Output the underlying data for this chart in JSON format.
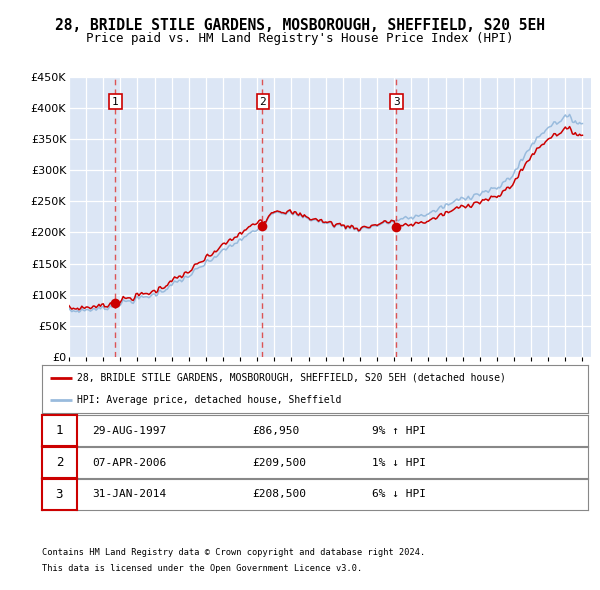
{
  "title_line1": "28, BRIDLE STILE GARDENS, MOSBOROUGH, SHEFFIELD, S20 5EH",
  "title_line2": "Price paid vs. HM Land Registry's House Price Index (HPI)",
  "title_fontsize": 10.5,
  "subtitle_fontsize": 9,
  "bg_color": "#dce6f5",
  "ylim": [
    0,
    450000
  ],
  "yticks": [
    0,
    50000,
    100000,
    150000,
    200000,
    250000,
    300000,
    350000,
    400000,
    450000
  ],
  "xmin": 1995.0,
  "xmax": 2025.5,
  "xticks": [
    1995,
    1996,
    1997,
    1998,
    1999,
    2000,
    2001,
    2002,
    2003,
    2004,
    2005,
    2006,
    2007,
    2008,
    2009,
    2010,
    2011,
    2012,
    2013,
    2014,
    2015,
    2016,
    2017,
    2018,
    2019,
    2020,
    2021,
    2022,
    2023,
    2024,
    2025
  ],
  "sale_color": "#cc0000",
  "hpi_color": "#99bbdd",
  "vline_color": "#dd4444",
  "sale_dot_color": "#cc0000",
  "sale_marker_size": 7,
  "grid_color": "#ffffff",
  "sales": [
    {
      "label": "1",
      "date": 1997.66,
      "price": 86950,
      "x_vline": 1997.66
    },
    {
      "label": "2",
      "date": 2006.27,
      "price": 209500,
      "x_vline": 2006.27
    },
    {
      "label": "3",
      "date": 2014.08,
      "price": 208500,
      "x_vline": 2014.08
    }
  ],
  "table_rows": [
    {
      "num": "1",
      "date": "29-AUG-1997",
      "price": "£86,950",
      "change": "9% ↑ HPI"
    },
    {
      "num": "2",
      "date": "07-APR-2006",
      "price": "£209,500",
      "change": "1% ↓ HPI"
    },
    {
      "num": "3",
      "date": "31-JAN-2014",
      "price": "£208,500",
      "change": "6% ↓ HPI"
    }
  ],
  "legend_line1": "28, BRIDLE STILE GARDENS, MOSBOROUGH, SHEFFIELD, S20 5EH (detached house)",
  "legend_line2": "HPI: Average price, detached house, Sheffield",
  "footer1": "Contains HM Land Registry data © Crown copyright and database right 2024.",
  "footer2": "This data is licensed under the Open Government Licence v3.0."
}
